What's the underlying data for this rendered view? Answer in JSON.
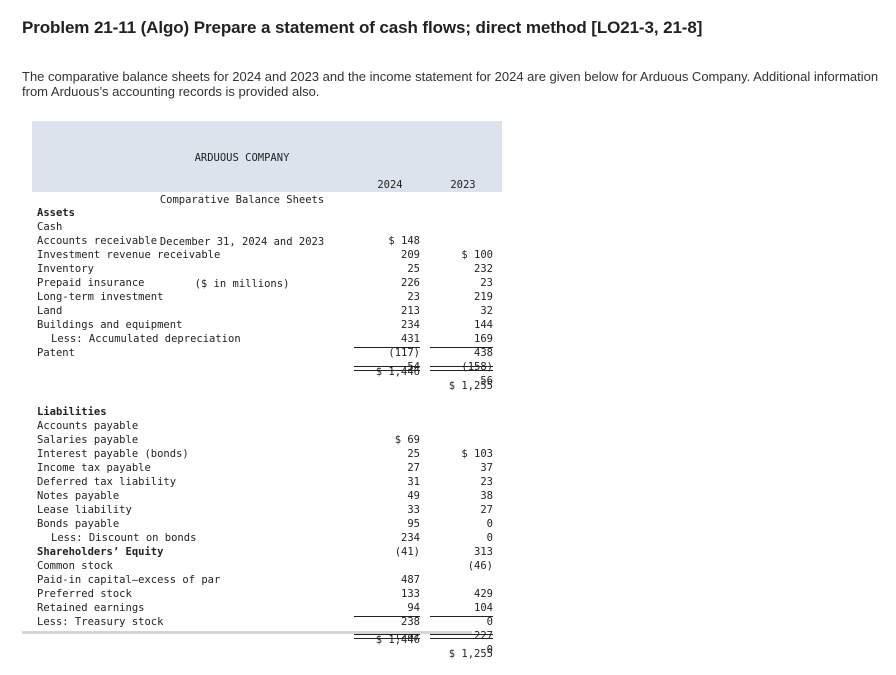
{
  "title": "Problem 21-11 (Algo) Prepare a statement of cash flows; direct method [LO21-3, 21-8]",
  "intro": "The comparative balance sheets for 2024 and 2023 and the income statement for 2024 are given below for Arduous Company. Additional information from Arduous’s accounting records is provided also.",
  "statement": {
    "company": "ARDUOUS COMPANY",
    "name": "Comparative Balance Sheets",
    "date": "December 31, 2024 and 2023",
    "units": "($ in millions)",
    "year1": "2024",
    "year2": "2023",
    "assets_heading": "Assets",
    "assets": [
      {
        "label": "Cash",
        "v2024": "$ 148",
        "v2023": "$ 100"
      },
      {
        "label": "Accounts receivable",
        "v2024": "209",
        "v2023": "232"
      },
      {
        "label": "Investment revenue receivable",
        "v2024": "25",
        "v2023": "23"
      },
      {
        "label": "Inventory",
        "v2024": "226",
        "v2023": "219"
      },
      {
        "label": "Prepaid insurance",
        "v2024": "23",
        "v2023": "32"
      },
      {
        "label": "Long-term investment",
        "v2024": "213",
        "v2023": "144"
      },
      {
        "label": "Land",
        "v2024": "234",
        "v2023": "169"
      },
      {
        "label": "Buildings and equipment",
        "v2024": "431",
        "v2023": "438"
      },
      {
        "label": "Less: Accumulated depreciation",
        "v2024": "(117)",
        "v2023": "(158)"
      },
      {
        "label": "Patent",
        "v2024": "54",
        "v2023": "56"
      }
    ],
    "assets_total": {
      "v2024": "$ 1,446",
      "v2023": "$ 1,255"
    },
    "liabilities_heading": "Liabilities",
    "liabilities": [
      {
        "label": "Accounts payable",
        "v2024": "$ 69",
        "v2023": "$ 103"
      },
      {
        "label": "Salaries payable",
        "v2024": "25",
        "v2023": "37"
      },
      {
        "label": "Interest payable (bonds)",
        "v2024": "27",
        "v2023": "23"
      },
      {
        "label": "Income tax payable",
        "v2024": "31",
        "v2023": "38"
      },
      {
        "label": "Deferred tax liability",
        "v2024": "49",
        "v2023": "27"
      },
      {
        "label": "Notes payable",
        "v2024": "33",
        "v2023": "0"
      },
      {
        "label": "Lease liability",
        "v2024": "95",
        "v2023": "0"
      },
      {
        "label": "Bonds payable",
        "v2024": "234",
        "v2023": "313"
      },
      {
        "label": "Less: Discount on bonds",
        "v2024": "(41)",
        "v2023": "(46)"
      }
    ],
    "equity_heading": "Shareholders’ Equity",
    "equity": [
      {
        "label": "Common stock",
        "v2024": "487",
        "v2023": "429"
      },
      {
        "label": "Paid-in capital—excess of par",
        "v2024": "133",
        "v2023": "104"
      },
      {
        "label": "Preferred stock",
        "v2024": "94",
        "v2023": "0"
      },
      {
        "label": "Retained earnings",
        "v2024": "238",
        "v2023": "227"
      },
      {
        "label": "Less: Treasury stock",
        "v2024": "(28)",
        "v2023": "0"
      }
    ],
    "liab_equity_total": {
      "v2024": "$ 1,446",
      "v2023": "$ 1,255"
    }
  }
}
